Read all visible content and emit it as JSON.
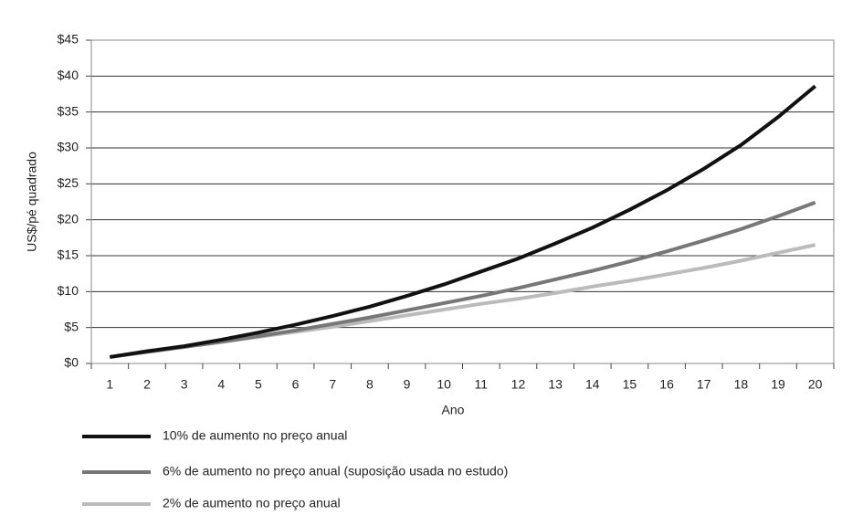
{
  "chart_data": {
    "type": "line",
    "categories": [
      "1",
      "2",
      "3",
      "4",
      "5",
      "6",
      "7",
      "8",
      "9",
      "10",
      "11",
      "12",
      "13",
      "14",
      "15",
      "16",
      "17",
      "18",
      "19",
      "20"
    ],
    "series": [
      {
        "name": "10% de aumento no preço anual",
        "color": "#111111",
        "values": [
          0.9,
          1.7,
          2.4,
          3.3,
          4.3,
          5.4,
          6.6,
          7.9,
          9.4,
          11.0,
          12.8,
          14.6,
          16.7,
          18.9,
          21.4,
          24.1,
          27.1,
          30.4,
          34.3,
          38.6
        ]
      },
      {
        "name": "6% de aumento no preço anual (suposição usada no estudo)",
        "color": "#777777",
        "values": [
          0.9,
          1.6,
          2.3,
          3.0,
          3.8,
          4.6,
          5.5,
          6.4,
          7.4,
          8.4,
          9.4,
          10.5,
          11.7,
          12.9,
          14.2,
          15.6,
          17.1,
          18.7,
          20.5,
          22.4
        ]
      },
      {
        "name": "2% de aumento no preço anual",
        "color": "#bbbbbb",
        "values": [
          0.9,
          1.6,
          2.3,
          3.0,
          3.7,
          4.4,
          5.1,
          5.9,
          6.7,
          7.5,
          8.3,
          9.0,
          9.8,
          10.7,
          11.5,
          12.4,
          13.3,
          14.3,
          15.4,
          16.5
        ]
      }
    ],
    "xlabel": "Ano",
    "ylabel": "US$/pé quadrado",
    "ylim": [
      0,
      45
    ],
    "yticks": [
      {
        "value": 0,
        "label": "$0"
      },
      {
        "value": 5,
        "label": "$5"
      },
      {
        "value": 10,
        "label": "$10"
      },
      {
        "value": 15,
        "label": "$15"
      },
      {
        "value": 20,
        "label": "$20"
      },
      {
        "value": 25,
        "label": "$25"
      },
      {
        "value": 30,
        "label": "$30"
      },
      {
        "value": 35,
        "label": "$35"
      },
      {
        "value": 40,
        "label": "$40"
      },
      {
        "value": 45,
        "label": "$45"
      }
    ],
    "grid": true,
    "legend": "bottom-left"
  }
}
